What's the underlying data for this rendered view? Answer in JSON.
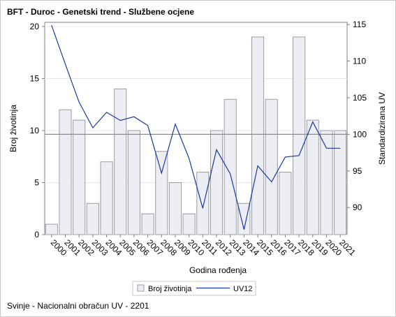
{
  "title": "BFT - Duroc - Genetski trend - Službene ocjene",
  "footnote": "Svinje - Nacionalni obračun UV - 2201",
  "chart_data": {
    "type": "bar+line",
    "xlabel": "Godina rođenja",
    "categories": [
      "2000",
      "2001",
      "2002",
      "2003",
      "2004",
      "2005",
      "2006",
      "2007",
      "2008",
      "2009",
      "2010",
      "2011",
      "2012",
      "2013",
      "2014",
      "2015",
      "2016",
      "2017",
      "2018",
      "2019",
      "2020",
      "2021"
    ],
    "series": [
      {
        "name": "Broj životinja",
        "type": "bar",
        "axis": "left",
        "values": [
          1,
          12,
          11,
          3,
          7,
          14,
          10,
          2,
          8,
          5,
          2,
          6,
          10,
          13,
          3,
          19,
          13,
          6,
          19,
          11,
          10,
          10
        ]
      },
      {
        "name": "UV12",
        "type": "line",
        "axis": "right",
        "values": [
          114.9,
          109.6,
          104.4,
          100.9,
          103.0,
          101.9,
          102.4,
          101.2,
          94.7,
          101.4,
          96.7,
          89.9,
          97.9,
          94.6,
          87.0,
          95.7,
          93.5,
          96.9,
          97.1,
          101.7,
          98.1,
          98.1
        ]
      }
    ],
    "ylabel_left": "Broj životinja",
    "ylim_left": [
      0,
      20
    ],
    "yticks_left": [
      "0",
      "5",
      "10",
      "15",
      "20"
    ],
    "ylabel_right": "Standardizirana UV",
    "ylim_right": [
      86.3,
      115.3
    ],
    "yticks_right": [
      "90",
      "95",
      "100",
      "105",
      "110",
      "115"
    ],
    "reference_line_right": 100,
    "grid": true,
    "legend_position": "bottom",
    "colors": {
      "bar_fill": "#eceef3",
      "bar_stroke": "#9a9ca3",
      "line": "#1c3a9e",
      "reference": "#8a8a8a",
      "grid": "#e6e6e6",
      "axis": "#7f7f7f"
    }
  }
}
